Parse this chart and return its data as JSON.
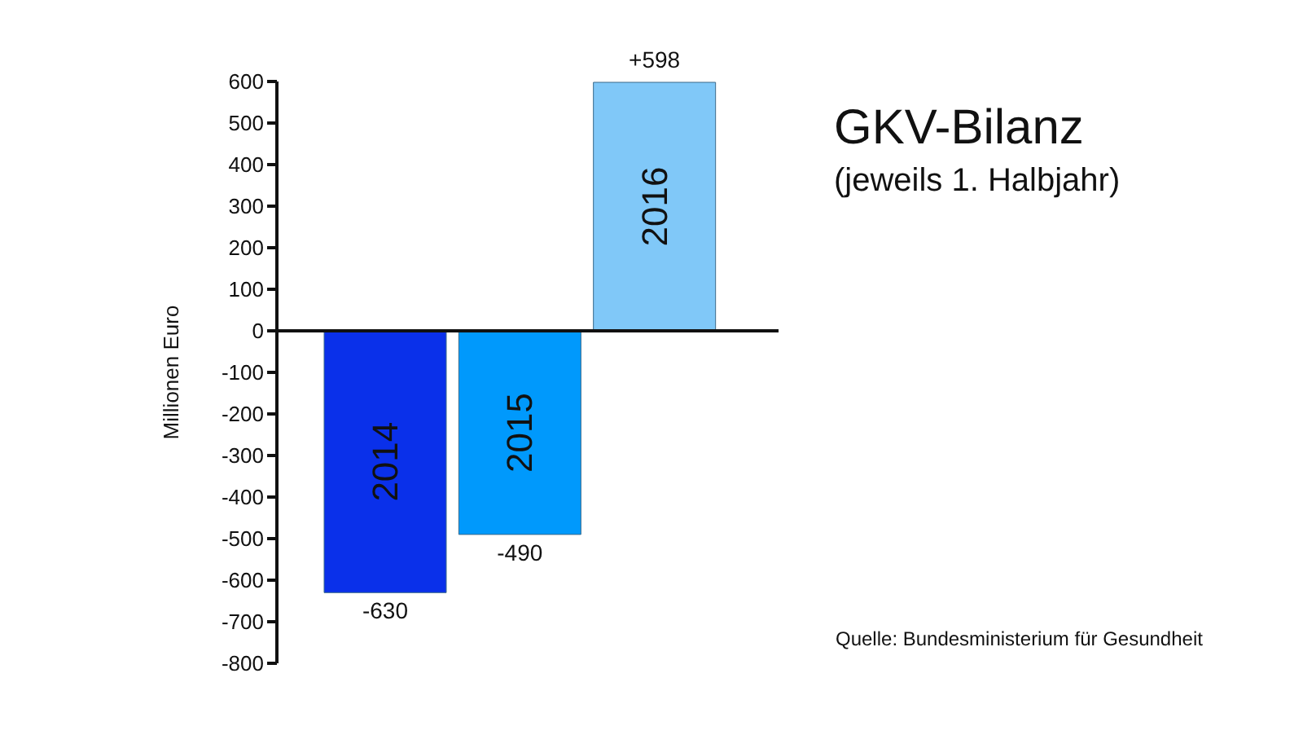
{
  "chart_data": {
    "type": "bar",
    "title": "GKV-Bilanz",
    "subtitle": "(jeweils 1. Halbjahr)",
    "ylabel": "Millionen Euro",
    "categories": [
      "2014",
      "2015",
      "2016"
    ],
    "values": [
      -630,
      -490,
      598
    ],
    "colors": [
      "#0a30ea",
      "#0099fc",
      "#80c8f8"
    ],
    "value_labels": [
      "-630",
      "-490",
      "+598"
    ],
    "ylim": [
      -800,
      600
    ],
    "yticks": [
      -800,
      -700,
      -600,
      -500,
      -400,
      -300,
      -200,
      -100,
      0,
      100,
      200,
      300,
      400,
      500,
      600
    ],
    "legend": false,
    "annotations": [
      "Quelle: Bundesministerium für Gesundheit"
    ]
  }
}
